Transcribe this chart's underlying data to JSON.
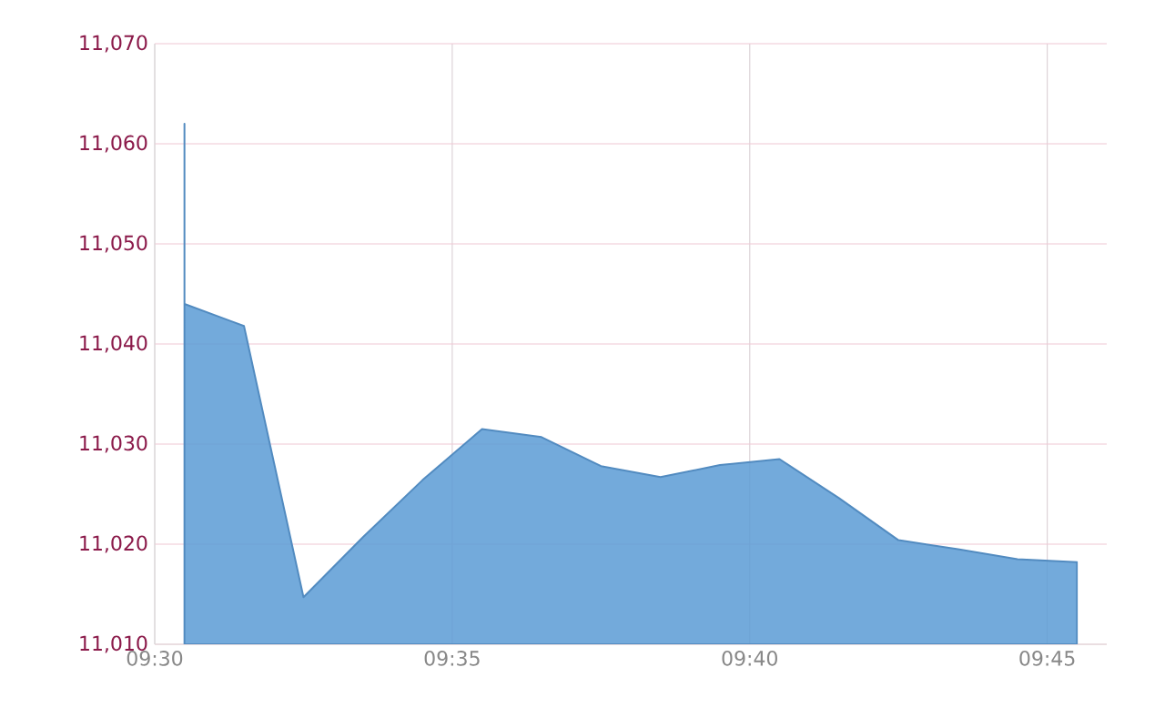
{
  "chart_data": {
    "type": "area",
    "x": [
      9.50833,
      9.50833,
      9.525,
      9.54167,
      9.55833,
      9.575,
      9.59167,
      9.60833,
      9.625,
      9.64167,
      9.65833,
      9.675,
      9.69167,
      9.70833,
      9.725,
      9.74167,
      9.75833
    ],
    "series": [
      {
        "color": "#5b9bd5",
        "values": [
          11062,
          11044,
          11041.8,
          11014.7,
          11020.7,
          11026.4,
          11031.5,
          11030.7,
          11027.8,
          11026.7,
          11027.9,
          11028.5,
          11024.6,
          11020.4,
          11019.5,
          11018.5,
          11018.2
        ]
      }
    ],
    "xlim": [
      9.5,
      9.76667
    ],
    "xticks": [
      {
        "value": 9.5,
        "label": "09:30"
      },
      {
        "value": 9.58333,
        "label": "09:35"
      },
      {
        "value": 9.66667,
        "label": "09:40"
      },
      {
        "value": 9.75,
        "label": "09:45"
      }
    ],
    "ylim": [
      11010,
      11070
    ],
    "yticks": [
      {
        "value": 11010,
        "label": "11,010"
      },
      {
        "value": 11020,
        "label": "11,020"
      },
      {
        "value": 11030,
        "label": "11,030"
      },
      {
        "value": 11040,
        "label": "11,040"
      },
      {
        "value": 11050,
        "label": "11,050"
      },
      {
        "value": 11060,
        "label": "11,060"
      },
      {
        "value": 11070,
        "label": "11,070"
      }
    ],
    "grid": true
  }
}
